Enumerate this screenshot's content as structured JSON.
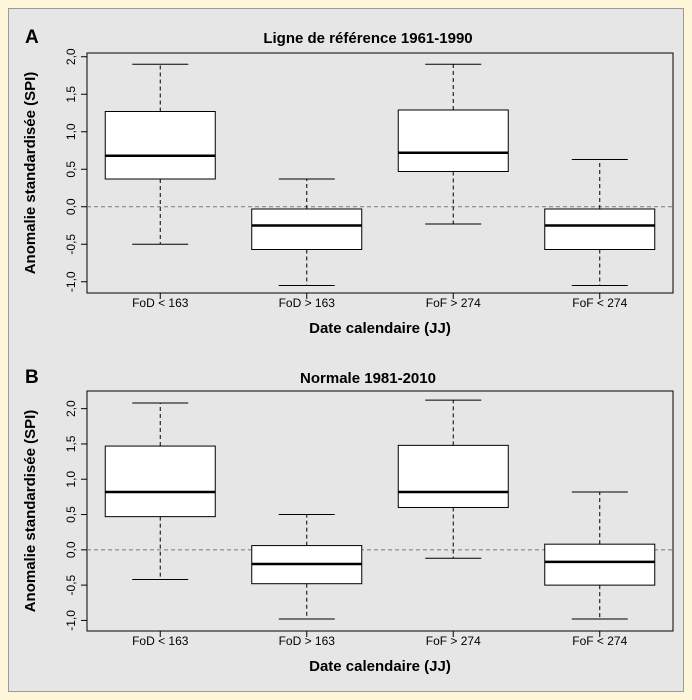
{
  "chart_data": [
    {
      "panel": "A",
      "type": "box",
      "title": "Ligne de référence 1961-1990",
      "xlabel": "Date calendaire (JJ)",
      "ylabel": "Anomalie standardisée (SPI)",
      "ylim": [
        -1.15,
        2.05
      ],
      "yticks": [
        -1.0,
        -0.5,
        0.0,
        0.5,
        1.0,
        1.5,
        2.0
      ],
      "ytick_labels": [
        "-1,0",
        "-0,5",
        "0,0",
        "0,5",
        "1,0",
        "1,5",
        "2,0"
      ],
      "reference_line": 0.0,
      "categories": [
        "FoD < 163",
        "FoD > 163",
        "FoF > 274",
        "FoF < 274"
      ],
      "boxes": [
        {
          "min": -0.5,
          "q1": 0.37,
          "median": 0.68,
          "q3": 1.27,
          "max": 1.9
        },
        {
          "min": -1.05,
          "q1": -0.57,
          "median": -0.25,
          "q3": -0.03,
          "max": 0.37
        },
        {
          "min": -0.23,
          "q1": 0.47,
          "median": 0.72,
          "q3": 1.29,
          "max": 1.9
        },
        {
          "min": -1.05,
          "q1": -0.57,
          "median": -0.25,
          "q3": -0.03,
          "max": 0.63
        }
      ]
    },
    {
      "panel": "B",
      "type": "box",
      "title": "Normale 1981-2010",
      "xlabel": "Date calendaire (JJ)",
      "ylabel": "Anomalie standardisée (SPI)",
      "ylim": [
        -1.15,
        2.25
      ],
      "yticks": [
        -1.0,
        -0.5,
        0.0,
        0.5,
        1.0,
        1.5,
        2.0
      ],
      "ytick_labels": [
        "-1,0",
        "-0,5",
        "0,0",
        "0,5",
        "1,0",
        "1,5",
        "2,0"
      ],
      "reference_line": 0.0,
      "categories": [
        "FoD < 163",
        "FoD > 163",
        "FoF > 274",
        "FoF < 274"
      ],
      "boxes": [
        {
          "min": -0.42,
          "q1": 0.47,
          "median": 0.82,
          "q3": 1.47,
          "max": 2.08
        },
        {
          "min": -0.98,
          "q1": -0.48,
          "median": -0.2,
          "q3": 0.06,
          "max": 0.5
        },
        {
          "min": -0.12,
          "q1": 0.6,
          "median": 0.82,
          "q3": 1.48,
          "max": 2.12
        },
        {
          "min": -0.98,
          "q1": -0.5,
          "median": -0.17,
          "q3": 0.08,
          "max": 0.82
        }
      ]
    }
  ]
}
